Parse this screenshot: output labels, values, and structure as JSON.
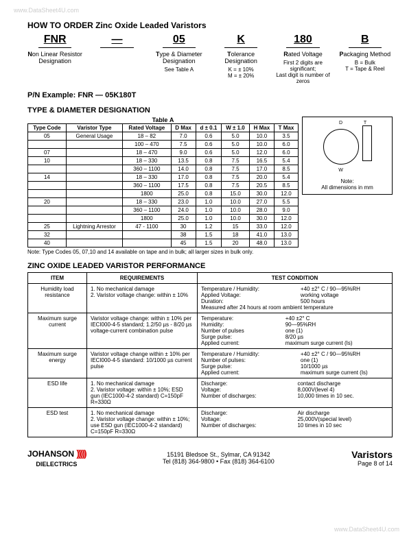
{
  "watermark": "www.DataSheet4U.com",
  "title": "HOW TO ORDER Zinc Oxide Leaded Varistors",
  "order": [
    {
      "code": "FNR",
      "label": "Non Linear Resistor Designation",
      "sub": ""
    },
    {
      "code": "—",
      "label": "",
      "sub": ""
    },
    {
      "code": "05",
      "label": "Type & Diameter Designation",
      "sub": "See Table A"
    },
    {
      "code": "K",
      "label": "Tolerance Designation",
      "sub": "K = ± 10%\nM = ± 20%"
    },
    {
      "code": "180",
      "label": "Rated Voltage",
      "sub": "First 2 digits are significant;\nLast digit is number of zeros"
    },
    {
      "code": "B",
      "label": "Packaging Method",
      "sub": "B = Bulk\nT = Tape & Reel"
    }
  ],
  "pn_example_label": "P/N Example:",
  "pn_example_value": "FNR — 05K180T",
  "section_a": "TYPE & DIAMETER DESIGNATION",
  "table_a_caption": "Table A",
  "table_a_headers": [
    "Type Code",
    "Varistor Type",
    "Rated Voltage",
    "D Max",
    "d ± 0.1",
    "W ± 1.0",
    "H Max",
    "T Max"
  ],
  "table_a_rows": [
    [
      "05",
      "General Usage",
      "18 – 82",
      "7.0",
      "0.6",
      "5.0",
      "10.0",
      "3.5"
    ],
    [
      "",
      "",
      "100 – 470",
      "7.5",
      "0.6",
      "5.0",
      "10.0",
      "6.0"
    ],
    [
      "07",
      "",
      "18 – 470",
      "9.0",
      "0.6",
      "5.0",
      "12.0",
      "6.0"
    ],
    [
      "10",
      "",
      "18 – 330",
      "13.5",
      "0.8",
      "7.5",
      "16.5",
      "5.4"
    ],
    [
      "",
      "",
      "360 – 1100",
      "14.0",
      "0.8",
      "7.5",
      "17.0",
      "8.5"
    ],
    [
      "14",
      "",
      "18 – 330",
      "17.0",
      "0.8",
      "7.5",
      "20.0",
      "5.4"
    ],
    [
      "",
      "",
      "360 – 1100",
      "17.5",
      "0.8",
      "7.5",
      "20.5",
      "8.5"
    ],
    [
      "",
      "",
      "1800",
      "25.0",
      "0.8",
      "15.0",
      "30.0",
      "12.0"
    ],
    [
      "20",
      "",
      "18 – 330",
      "23.0",
      "1.0",
      "10.0",
      "27.0",
      "5.5"
    ],
    [
      "",
      "",
      "360 – 1100",
      "24.0",
      "1.0",
      "10.0",
      "28.0",
      "9.0"
    ],
    [
      "",
      "",
      "1800",
      "25.0",
      "1.0",
      "10.0",
      "30.0",
      "12.0"
    ],
    [
      "25",
      "Lightning Arrestor",
      "47 - 1100",
      "30",
      "1.2",
      "15",
      "33.0",
      "12.0"
    ],
    [
      "32",
      "",
      "",
      "38",
      "1.5",
      "18",
      "41.0",
      "13.0"
    ],
    [
      "40",
      "",
      "",
      "45",
      "1.5",
      "20",
      "48.0",
      "13.0"
    ]
  ],
  "dim_note": "Note:\nAll dimensions in mm",
  "table_a_note": "Note:   Type Codes 05, 07,10 and 14 available on tape and in bulk; all larger sizes in bulk only.",
  "section_b": "ZINC OXIDE LEADED VARISTOR PERFORMANCE",
  "perf_headers": [
    "ITEM",
    "REQUIREMENTS",
    "TEST CONDITION"
  ],
  "perf_rows": [
    {
      "item": "Humidity load resistance",
      "req": "1. No mechanical damage\n2. Varistor voltage change: within ± 10%",
      "tc_left": "Temperature / Humidity:\nApplied Voltage:\nDuration:",
      "tc_right": "+40 ±2° C / 90—95%RH\nworking voltage\n500 hours",
      "tc_full": "Measured after 24 hours at room ambient temperature"
    },
    {
      "item": "Maximum surge current",
      "req": "Varistor voltage change: within ± 10% per IECI000-4-5 standard; 1.2/50 µs - 8/20 µs voltage-current combination pulse",
      "tc_left": "Temperature:\nHumidity:\nNumber of pulses\nSurge pulse:\nApplied current:",
      "tc_right": "+40 ±2° C\n90—95%RH\none (1)\n8/20 µs\nmaximum surge current (Is)"
    },
    {
      "item": "Maximum surge energy",
      "req": "Varistor voltage change within ± 10% per IECI000-4-5 standard: 10/1000 µs current pulse",
      "tc_left": "Temperature / Humidity:\nNumber of pulses:\nSurge pulse:\nApplied current:",
      "tc_right": "+40 ±2° C / 90—95%RH\none (1)\n10/1000 µs\nmaximum surge current (Is)"
    },
    {
      "item": "ESD life",
      "req": "1. No mechanical damage\n2. Varistor voltage: within ± 10%; ESD gun (IEC1000-4-2 standard) C=150pF R=330Ω",
      "tc_left": "Discharge:\nVoltage:\nNumber of discharges:",
      "tc_right": "contact discharge\n8,000V(level 4)\n10,000 times in 10 sec."
    },
    {
      "item": "ESD test",
      "req": "1. No mechanical damage\n2. Varistor voltage change: within ± 10%; use ESD gun (IEC1000-4-2 standard) C=150pF R=330Ω",
      "tc_left": "Discharge:\nVoltage:\nNumber of discharges:",
      "tc_right": "Air discharge\n25,000V(special level)\n10 times in 10 sec"
    }
  ],
  "footer": {
    "company": "JOHANSON",
    "company_sub": "DIELECTRICS",
    "address": "15191 Bledsoe St., Sylmar, CA 91342",
    "phone": "Tel (818) 364-9800 • Fax (818) 364-6100",
    "right_title": "Varistors",
    "right_page": "Page 8 of  14"
  }
}
